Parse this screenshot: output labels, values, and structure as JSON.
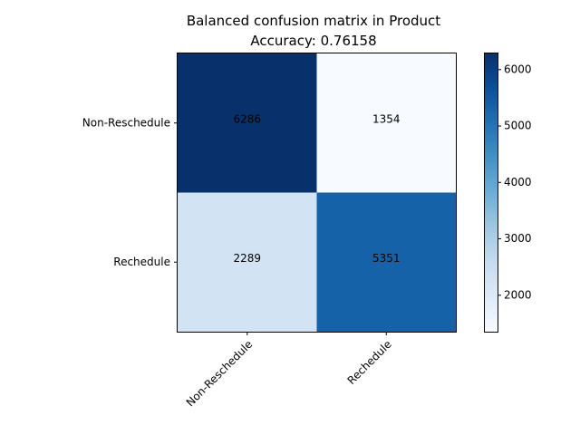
{
  "chart_data": {
    "type": "heatmap",
    "title": "Balanced confusion matrix in Product",
    "subtitle": "Accuracy: 0.76158",
    "row_labels": [
      "Non-Reschedule",
      "Rechedule"
    ],
    "col_labels": [
      "Non-Reschedule",
      "Rechedule"
    ],
    "values": [
      [
        6286,
        1354
      ],
      [
        2289,
        5351
      ]
    ],
    "colormap": "Blues",
    "color_range": [
      1354,
      6286
    ],
    "colorbar_ticks": [
      2000,
      3000,
      4000,
      5000,
      6000
    ],
    "xlabel": "",
    "ylabel": ""
  }
}
